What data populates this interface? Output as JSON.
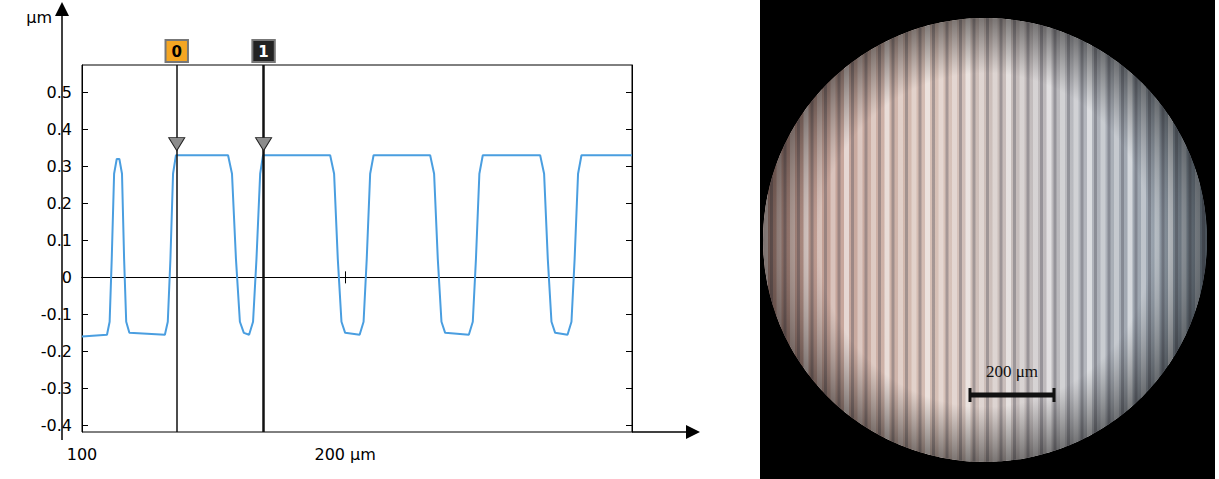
{
  "chart_data": {
    "type": "line",
    "y_label": "μm",
    "x": [
      100,
      109.5,
      110.5,
      111.3,
      112.2,
      113.2,
      114.2,
      115.2,
      116,
      116.8,
      118,
      131.5,
      132.6,
      133.6,
      134.6,
      135.7,
      155.5,
      157,
      158.5,
      160,
      161.5,
      163.5,
      165,
      166.3,
      167.7,
      168.8,
      194.3,
      195.8,
      197.2,
      198.6,
      200,
      205.5,
      207,
      208.2,
      209.5,
      210.8,
      232.3,
      233.8,
      235.2,
      236.6,
      238,
      247,
      248.5,
      249.7,
      251,
      252.3,
      274.1,
      275.6,
      277,
      278.4,
      279.8,
      284.5,
      286,
      287.2,
      288.5,
      289.8,
      309
    ],
    "values": [
      -0.16,
      -0.155,
      -0.12,
      0.05,
      0.28,
      0.32,
      0.32,
      0.28,
      0.05,
      -0.12,
      -0.15,
      -0.155,
      -0.12,
      0.05,
      0.28,
      0.33,
      0.33,
      0.28,
      0.05,
      -0.12,
      -0.15,
      -0.155,
      -0.12,
      0.05,
      0.28,
      0.33,
      0.33,
      0.28,
      0.05,
      -0.12,
      -0.15,
      -0.155,
      -0.12,
      0.05,
      0.28,
      0.33,
      0.33,
      0.28,
      0.05,
      -0.12,
      -0.15,
      -0.155,
      -0.12,
      0.05,
      0.28,
      0.33,
      0.33,
      0.28,
      0.05,
      -0.12,
      -0.15,
      -0.155,
      -0.12,
      0.05,
      0.28,
      0.33,
      0.33
    ],
    "color": "#4a9ee0",
    "xlim": [
      100,
      309
    ],
    "xticks": [
      100,
      {
        "value": 200,
        "label": "200 μm"
      }
    ],
    "ylim": [
      -0.418,
      0.574
    ],
    "yticks": [
      -0.4,
      -0.3,
      -0.2,
      -0.1,
      0,
      0.1,
      0.2,
      0.3,
      0.4,
      0.5
    ],
    "grid": false,
    "cursors": [
      {
        "label": "0",
        "x": 136,
        "y": 0.36,
        "color": "#f5a623"
      },
      {
        "label": "1",
        "x": 169,
        "y": 0.36,
        "color": "#222222"
      }
    ]
  },
  "photo": {
    "scale_bar_label": "200 μm"
  }
}
